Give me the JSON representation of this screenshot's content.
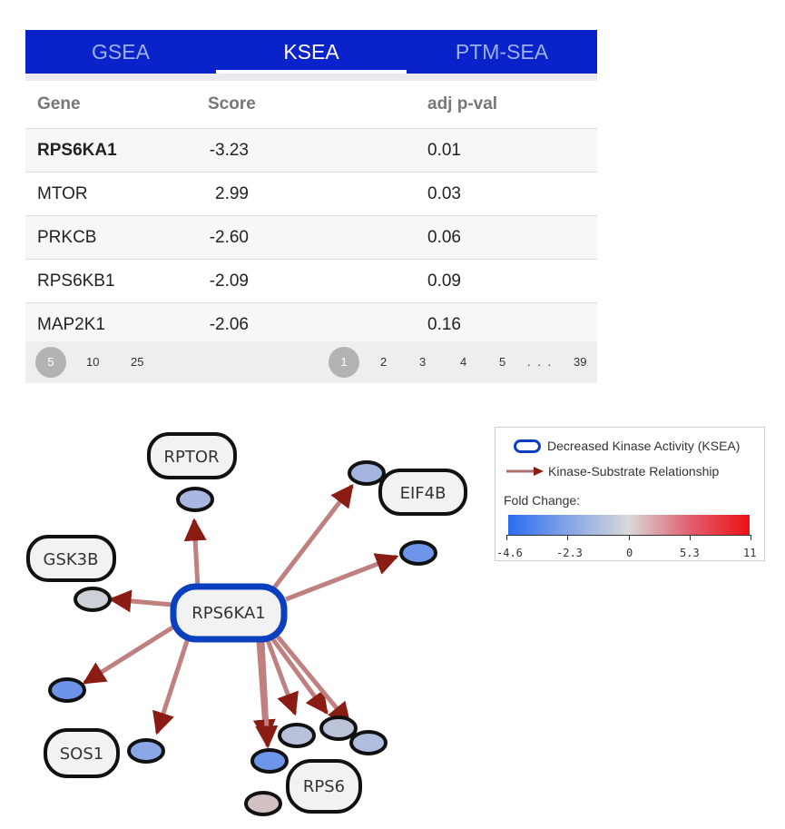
{
  "tabs": [
    {
      "label": "GSEA",
      "active": false
    },
    {
      "label": "KSEA",
      "active": true
    },
    {
      "label": "PTM-SEA",
      "active": false
    }
  ],
  "table": {
    "headers": [
      "Gene",
      "Score",
      "adj p-val"
    ],
    "rows": [
      {
        "gene": "RPS6KA1",
        "score": "-3.23",
        "pval": "0.01"
      },
      {
        "gene": "MTOR",
        "score": "2.99",
        "pval": "0.03"
      },
      {
        "gene": "PRKCB",
        "score": "-2.60",
        "pval": "0.06"
      },
      {
        "gene": "RPS6KB1",
        "score": "-2.09",
        "pval": "0.09"
      },
      {
        "gene": "MAP2K1",
        "score": "-2.06",
        "pval": "0.16"
      }
    ]
  },
  "pager": {
    "page_sizes": [
      "5",
      "10",
      "25"
    ],
    "selected_size": "5",
    "pages": [
      "1",
      "2",
      "3",
      "4",
      "5",
      ". . .",
      "39"
    ],
    "current_page": "1"
  },
  "network": {
    "center": "RPS6KA1",
    "labels": [
      "RPTOR",
      "EIF4B",
      "GSK3B",
      "SOS1",
      "RPS6"
    ],
    "colors": {
      "kinase_ring": "#0a40c0",
      "edge": "#c08080",
      "arrow": "#8a1c14",
      "node_border": "#111111",
      "label_fill": "#f2f2f2"
    }
  },
  "legend": {
    "kinase_label": "Decreased Kinase Activity (KSEA)",
    "edge_label": "Kinase-Substrate Relationship",
    "fold_change_title": "Fold Change:",
    "ticks": [
      "-4.6",
      "-2.3",
      "0",
      "5.3",
      "11"
    ],
    "gradient_colors": [
      "#2a6cf0",
      "#d9d9d9",
      "#ee0f15"
    ]
  }
}
